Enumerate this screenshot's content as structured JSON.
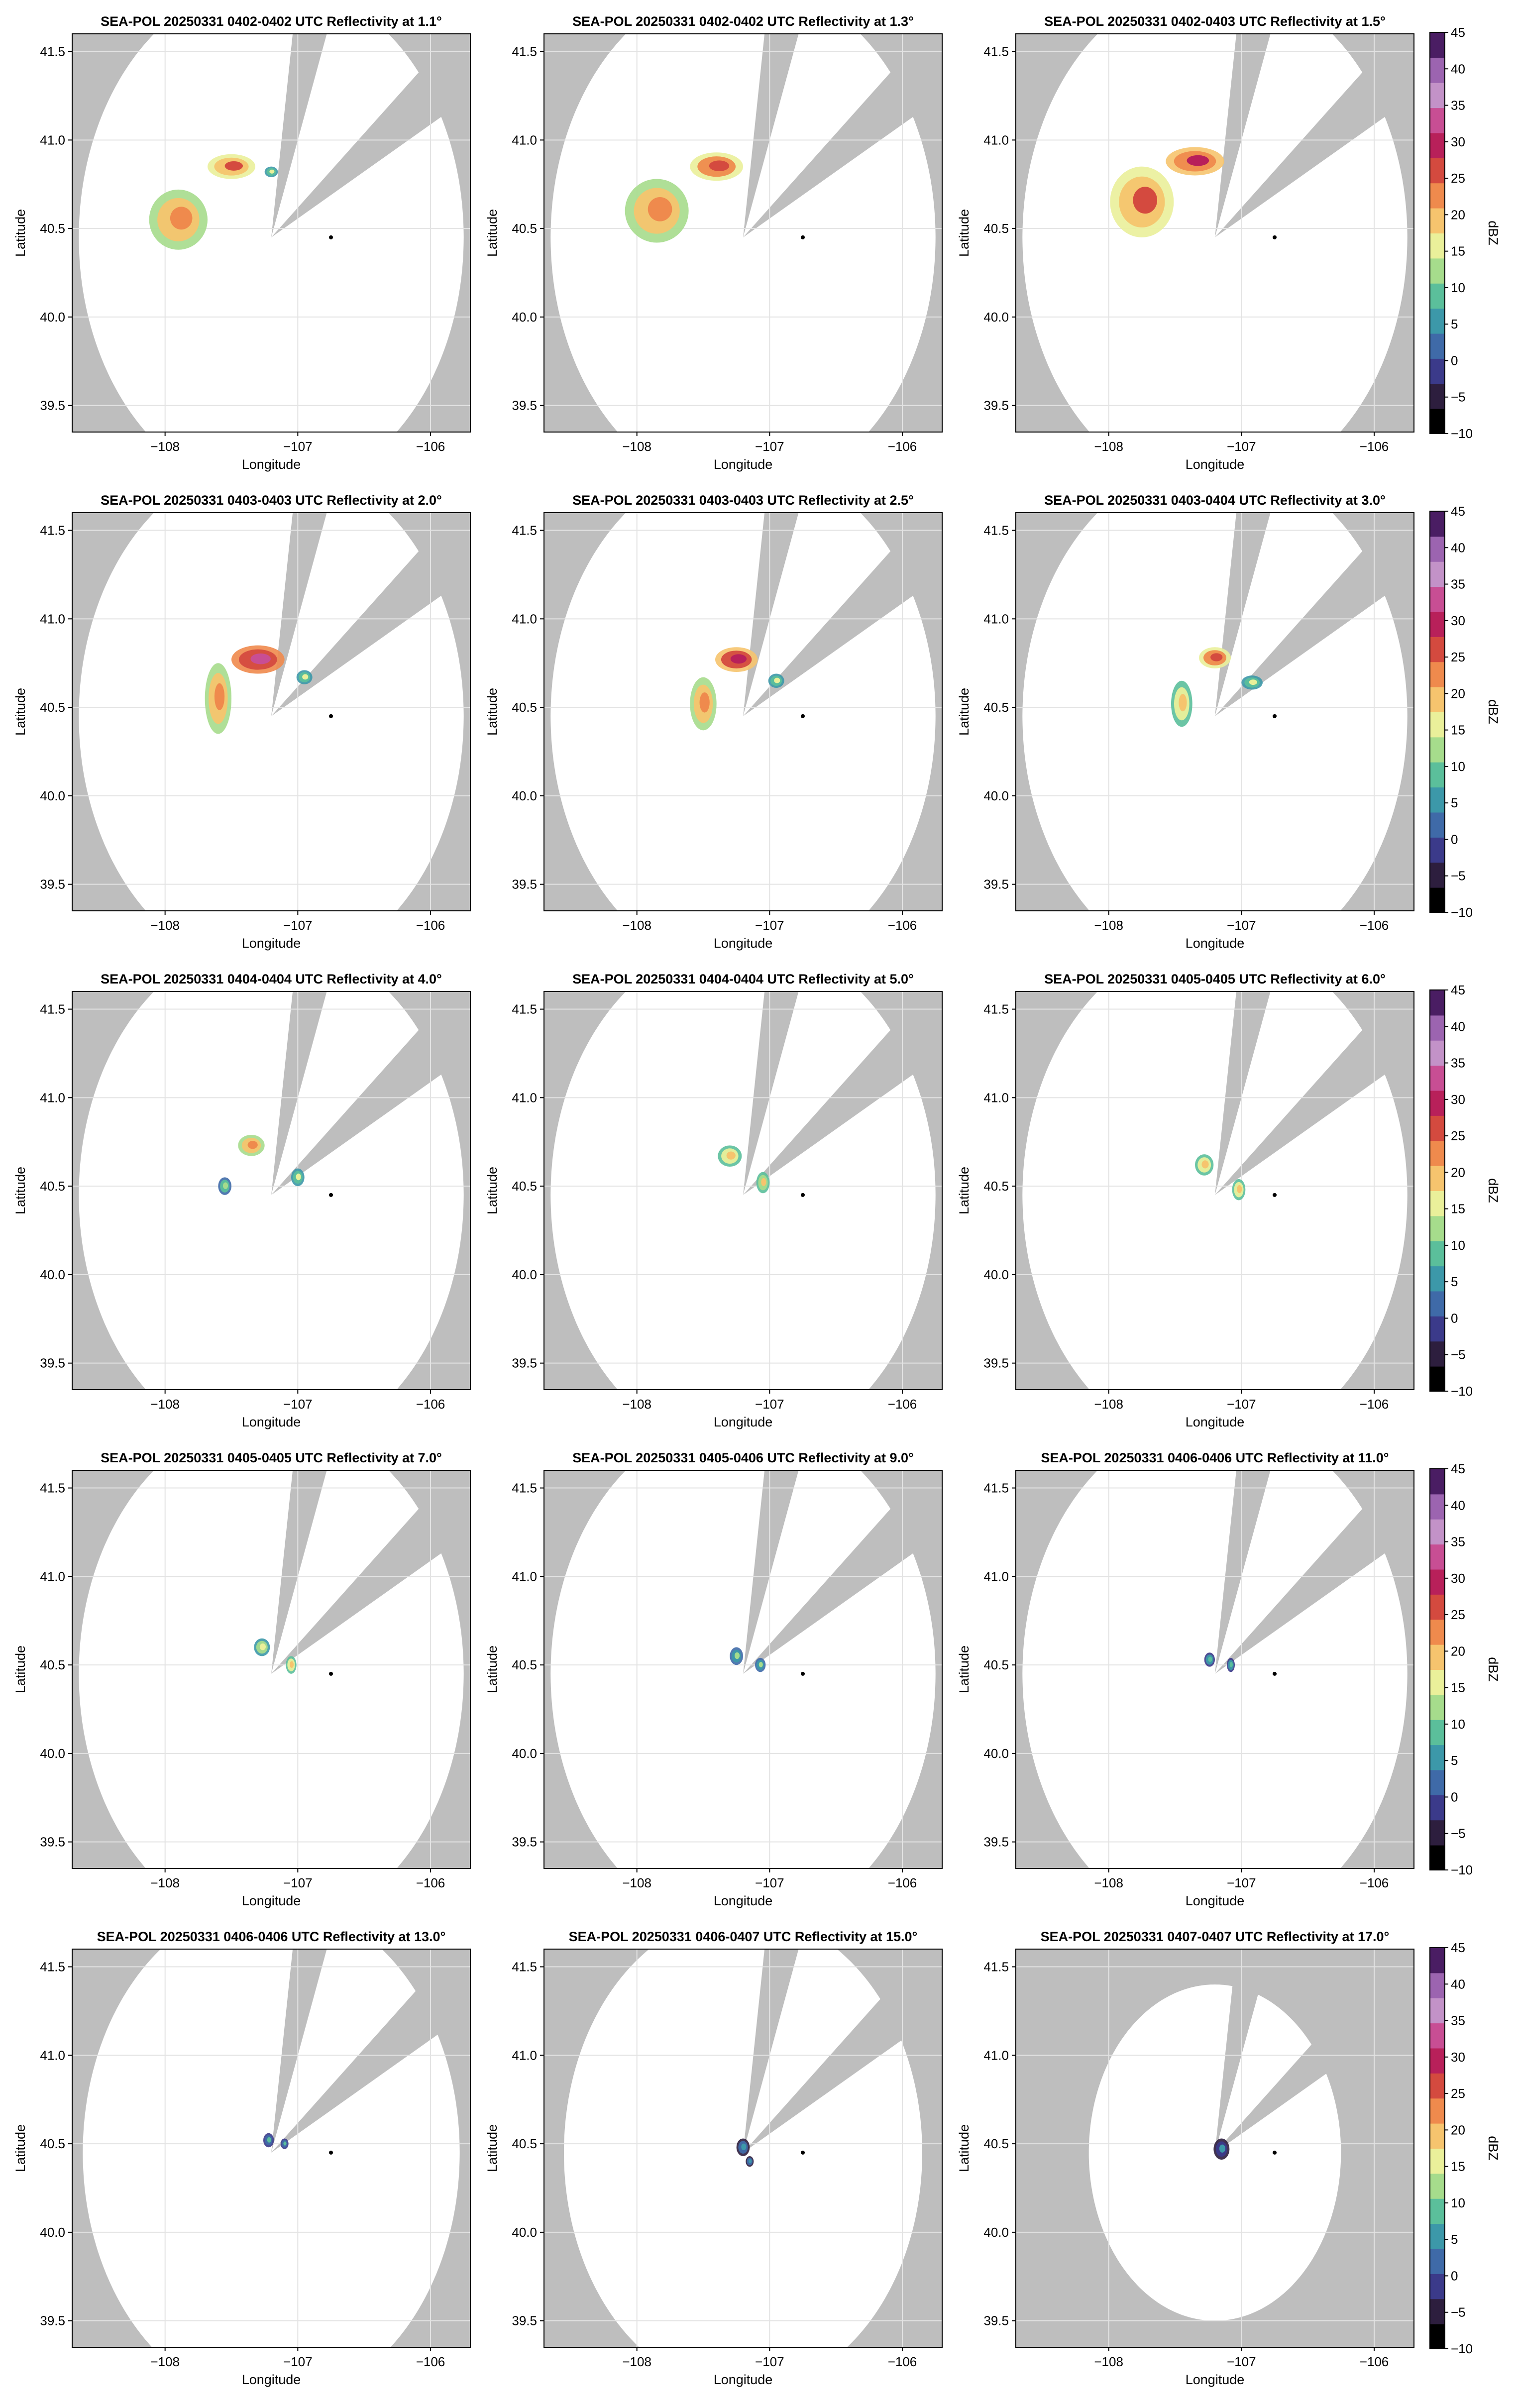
{
  "figure": {
    "panel_titles": [
      "SEA-POL 20250331 0402-0402 UTC Reflectivity at 1.1°",
      "SEA-POL 20250331 0402-0402 UTC Reflectivity at 1.3°",
      "SEA-POL 20250331 0402-0403 UTC Reflectivity at 1.5°",
      "SEA-POL 20250331 0403-0403 UTC Reflectivity at 2.0°",
      "SEA-POL 20250331 0403-0403 UTC Reflectivity at 2.5°",
      "SEA-POL 20250331 0403-0404 UTC Reflectivity at 3.0°",
      "SEA-POL 20250331 0404-0404 UTC Reflectivity at 4.0°",
      "SEA-POL 20250331 0404-0404 UTC Reflectivity at 5.0°",
      "SEA-POL 20250331 0405-0405 UTC Reflectivity at 6.0°",
      "SEA-POL 20250331 0405-0405 UTC Reflectivity at 7.0°",
      "SEA-POL 20250331 0405-0406 UTC Reflectivity at 9.0°",
      "SEA-POL 20250331 0406-0406 UTC Reflectivity at 11.0°",
      "SEA-POL 20250331 0406-0406 UTC Reflectivity at 13.0°",
      "SEA-POL 20250331 0406-0407 UTC Reflectivity at 15.0°",
      "SEA-POL 20250331 0407-0407 UTC Reflectivity at 17.0°"
    ]
  },
  "colors": {
    "background_no_data": "#bebebe",
    "coverage": "#ffffff",
    "grid": "#e3e3e3",
    "radar_marker": "#000000",
    "colormap": [
      "#000000",
      "#2d1e3e",
      "#3b3a8a",
      "#3f6aa8",
      "#3c98a9",
      "#5bbf9b",
      "#a6dc8c",
      "#eaf09a",
      "#f6c46e",
      "#ef8a4d",
      "#d44a3f",
      "#b8205a",
      "#c84e94",
      "#c392c8",
      "#9c64b0",
      "#4a1d63"
    ]
  },
  "chart_data": [
    {
      "type": "heatmap",
      "title": "SEA-POL 20250331 0402-0402 UTC Reflectivity at 1.1°",
      "elevation_deg": 1.1,
      "xlabel": "Longitude",
      "ylabel": "Latitude",
      "xlim": [
        -108.7,
        -105.7
      ],
      "ylim": [
        39.35,
        41.6
      ],
      "xticks": [
        -108,
        -107,
        -106
      ],
      "yticks": [
        39.5,
        40.0,
        40.5,
        41.0,
        41.5
      ],
      "grid": true,
      "radar_site": [
        -106.75,
        40.45
      ],
      "range_deg": 1.45,
      "blanked_sectors_deg": [
        [
          8,
          20
        ],
        [
          50,
          62
        ]
      ],
      "echoes": [
        {
          "lon": -107.9,
          "lat": 40.55,
          "rx": 0.22,
          "ry": 0.17,
          "dbz": 20
        },
        {
          "lon": -107.5,
          "lat": 40.85,
          "rx": 0.18,
          "ry": 0.07,
          "dbz": 23
        },
        {
          "lon": -107.2,
          "lat": 40.82,
          "rx": 0.05,
          "ry": 0.03,
          "dbz": 12
        }
      ]
    },
    {
      "type": "heatmap",
      "title": "SEA-POL 20250331 0402-0402 UTC Reflectivity at 1.3°",
      "elevation_deg": 1.3,
      "xlabel": "Longitude",
      "ylabel": "Latitude",
      "xlim": [
        -108.7,
        -105.7
      ],
      "ylim": [
        39.35,
        41.6
      ],
      "xticks": [
        -108,
        -107,
        -106
      ],
      "yticks": [
        39.5,
        40.0,
        40.5,
        41.0,
        41.5
      ],
      "grid": true,
      "radar_site": [
        -106.75,
        40.45
      ],
      "range_deg": 1.45,
      "blanked_sectors_deg": [
        [
          8,
          20
        ],
        [
          50,
          62
        ]
      ],
      "echoes": [
        {
          "lon": -107.85,
          "lat": 40.6,
          "rx": 0.24,
          "ry": 0.18,
          "dbz": 20
        },
        {
          "lon": -107.4,
          "lat": 40.85,
          "rx": 0.2,
          "ry": 0.08,
          "dbz": 24
        }
      ]
    },
    {
      "type": "heatmap",
      "title": "SEA-POL 20250331 0402-0403 UTC Reflectivity at 1.5°",
      "elevation_deg": 1.5,
      "xlabel": "Longitude",
      "ylabel": "Latitude",
      "xlim": [
        -108.7,
        -105.7
      ],
      "ylim": [
        39.35,
        41.6
      ],
      "xticks": [
        -108,
        -107,
        -106
      ],
      "yticks": [
        39.5,
        40.0,
        40.5,
        41.0,
        41.5
      ],
      "grid": true,
      "radar_site": [
        -106.75,
        40.45
      ],
      "range_deg": 1.45,
      "blanked_sectors_deg": [
        [
          8,
          20
        ],
        [
          50,
          62
        ]
      ],
      "echoes": [
        {
          "lon": -107.75,
          "lat": 40.65,
          "rx": 0.24,
          "ry": 0.2,
          "dbz": 22
        },
        {
          "lon": -107.35,
          "lat": 40.88,
          "rx": 0.22,
          "ry": 0.08,
          "dbz": 26
        }
      ]
    },
    {
      "type": "heatmap",
      "title": "SEA-POL 20250331 0403-0403 UTC Reflectivity at 2.0°",
      "elevation_deg": 2.0,
      "xlabel": "Longitude",
      "ylabel": "Latitude",
      "xlim": [
        -108.7,
        -105.7
      ],
      "ylim": [
        39.35,
        41.6
      ],
      "xticks": [
        -108,
        -107,
        -106
      ],
      "yticks": [
        39.5,
        40.0,
        40.5,
        41.0,
        41.5
      ],
      "grid": true,
      "radar_site": [
        -106.75,
        40.45
      ],
      "range_deg": 1.45,
      "blanked_sectors_deg": [
        [
          8,
          20
        ],
        [
          50,
          62
        ]
      ],
      "echoes": [
        {
          "lon": -107.6,
          "lat": 40.55,
          "rx": 0.1,
          "ry": 0.2,
          "dbz": 20
        },
        {
          "lon": -107.3,
          "lat": 40.77,
          "rx": 0.2,
          "ry": 0.08,
          "dbz": 30
        },
        {
          "lon": -106.95,
          "lat": 40.67,
          "rx": 0.06,
          "ry": 0.04,
          "dbz": 12
        }
      ]
    },
    {
      "type": "heatmap",
      "title": "SEA-POL 20250331 0403-0403 UTC Reflectivity at 2.5°",
      "elevation_deg": 2.5,
      "xlabel": "Longitude",
      "ylabel": "Latitude",
      "xlim": [
        -108.7,
        -105.7
      ],
      "ylim": [
        39.35,
        41.6
      ],
      "xticks": [
        -108,
        -107,
        -106
      ],
      "yticks": [
        39.5,
        40.0,
        40.5,
        41.0,
        41.5
      ],
      "grid": true,
      "radar_site": [
        -106.75,
        40.45
      ],
      "range_deg": 1.45,
      "blanked_sectors_deg": [
        [
          8,
          20
        ],
        [
          50,
          62
        ]
      ],
      "echoes": [
        {
          "lon": -107.5,
          "lat": 40.52,
          "rx": 0.1,
          "ry": 0.15,
          "dbz": 20
        },
        {
          "lon": -107.25,
          "lat": 40.77,
          "rx": 0.16,
          "ry": 0.07,
          "dbz": 27
        },
        {
          "lon": -106.95,
          "lat": 40.65,
          "rx": 0.06,
          "ry": 0.04,
          "dbz": 12
        }
      ]
    },
    {
      "type": "heatmap",
      "title": "SEA-POL 20250331 0403-0404 UTC Reflectivity at 3.0°",
      "elevation_deg": 3.0,
      "xlabel": "Longitude",
      "ylabel": "Latitude",
      "xlim": [
        -108.7,
        -105.7
      ],
      "ylim": [
        39.35,
        41.6
      ],
      "xticks": [
        -108,
        -107,
        -106
      ],
      "yticks": [
        39.5,
        40.0,
        40.5,
        41.0,
        41.5
      ],
      "grid": true,
      "radar_site": [
        -106.75,
        40.45
      ],
      "range_deg": 1.45,
      "blanked_sectors_deg": [
        [
          8,
          20
        ],
        [
          50,
          62
        ]
      ],
      "echoes": [
        {
          "lon": -107.45,
          "lat": 40.52,
          "rx": 0.08,
          "ry": 0.13,
          "dbz": 18
        },
        {
          "lon": -107.2,
          "lat": 40.78,
          "rx": 0.12,
          "ry": 0.06,
          "dbz": 25
        },
        {
          "lon": -106.92,
          "lat": 40.64,
          "rx": 0.08,
          "ry": 0.04,
          "dbz": 12
        }
      ]
    },
    {
      "type": "heatmap",
      "title": "SEA-POL 20250331 0404-0404 UTC Reflectivity at 4.0°",
      "elevation_deg": 4.0,
      "xlabel": "Longitude",
      "ylabel": "Latitude",
      "xlim": [
        -108.7,
        -105.7
      ],
      "ylim": [
        39.35,
        41.6
      ],
      "xticks": [
        -108,
        -107,
        -106
      ],
      "yticks": [
        39.5,
        40.0,
        40.5,
        41.0,
        41.5
      ],
      "grid": true,
      "radar_site": [
        -106.75,
        40.45
      ],
      "range_deg": 1.45,
      "blanked_sectors_deg": [
        [
          8,
          20
        ],
        [
          50,
          62
        ]
      ],
      "echoes": [
        {
          "lon": -107.35,
          "lat": 40.73,
          "rx": 0.1,
          "ry": 0.06,
          "dbz": 20
        },
        {
          "lon": -107.55,
          "lat": 40.5,
          "rx": 0.05,
          "ry": 0.05,
          "dbz": 10
        },
        {
          "lon": -107.0,
          "lat": 40.55,
          "rx": 0.05,
          "ry": 0.05,
          "dbz": 12
        }
      ]
    },
    {
      "type": "heatmap",
      "title": "SEA-POL 20250331 0404-0404 UTC Reflectivity at 5.0°",
      "elevation_deg": 5.0,
      "xlabel": "Longitude",
      "ylabel": "Latitude",
      "xlim": [
        -108.7,
        -105.7
      ],
      "ylim": [
        39.35,
        41.6
      ],
      "xticks": [
        -108,
        -107,
        -106
      ],
      "yticks": [
        39.5,
        40.0,
        40.5,
        41.0,
        41.5
      ],
      "grid": true,
      "radar_site": [
        -106.75,
        40.45
      ],
      "range_deg": 1.45,
      "blanked_sectors_deg": [
        [
          8,
          20
        ],
        [
          50,
          62
        ]
      ],
      "echoes": [
        {
          "lon": -107.3,
          "lat": 40.67,
          "rx": 0.09,
          "ry": 0.06,
          "dbz": 17
        },
        {
          "lon": -107.05,
          "lat": 40.52,
          "rx": 0.05,
          "ry": 0.06,
          "dbz": 15
        }
      ]
    },
    {
      "type": "heatmap",
      "title": "SEA-POL 20250331 0405-0405 UTC Reflectivity at 6.0°",
      "elevation_deg": 6.0,
      "xlabel": "Longitude",
      "ylabel": "Latitude",
      "xlim": [
        -108.7,
        -105.7
      ],
      "ylim": [
        39.35,
        41.6
      ],
      "xticks": [
        -108,
        -107,
        -106
      ],
      "yticks": [
        39.5,
        40.0,
        40.5,
        41.0,
        41.5
      ],
      "grid": true,
      "radar_site": [
        -106.75,
        40.45
      ],
      "range_deg": 1.45,
      "blanked_sectors_deg": [
        [
          8,
          20
        ],
        [
          50,
          62
        ]
      ],
      "echoes": [
        {
          "lon": -107.28,
          "lat": 40.62,
          "rx": 0.07,
          "ry": 0.06,
          "dbz": 16
        },
        {
          "lon": -107.02,
          "lat": 40.48,
          "rx": 0.05,
          "ry": 0.06,
          "dbz": 17
        }
      ]
    },
    {
      "type": "heatmap",
      "title": "SEA-POL 20250331 0405-0405 UTC Reflectivity at 7.0°",
      "elevation_deg": 7.0,
      "xlabel": "Longitude",
      "ylabel": "Latitude",
      "xlim": [
        -108.7,
        -105.7
      ],
      "ylim": [
        39.35,
        41.6
      ],
      "xticks": [
        -108,
        -107,
        -106
      ],
      "yticks": [
        39.5,
        40.0,
        40.5,
        41.0,
        41.5
      ],
      "grid": true,
      "radar_site": [
        -106.75,
        40.45
      ],
      "range_deg": 1.45,
      "blanked_sectors_deg": [
        [
          8,
          20
        ],
        [
          50,
          62
        ]
      ],
      "echoes": [
        {
          "lon": -107.27,
          "lat": 40.6,
          "rx": 0.06,
          "ry": 0.05,
          "dbz": 14
        },
        {
          "lon": -107.05,
          "lat": 40.5,
          "rx": 0.04,
          "ry": 0.05,
          "dbz": 16
        }
      ]
    },
    {
      "type": "heatmap",
      "title": "SEA-POL 20250331 0405-0406 UTC Reflectivity at 9.0°",
      "elevation_deg": 9.0,
      "xlabel": "Longitude",
      "ylabel": "Latitude",
      "xlim": [
        -108.7,
        -105.7
      ],
      "ylim": [
        39.35,
        41.6
      ],
      "xticks": [
        -108,
        -107,
        -106
      ],
      "yticks": [
        39.5,
        40.0,
        40.5,
        41.0,
        41.5
      ],
      "grid": true,
      "radar_site": [
        -106.75,
        40.45
      ],
      "range_deg": 1.45,
      "blanked_sectors_deg": [
        [
          8,
          20
        ],
        [
          50,
          62
        ]
      ],
      "echoes": [
        {
          "lon": -107.25,
          "lat": 40.55,
          "rx": 0.05,
          "ry": 0.05,
          "dbz": 8
        },
        {
          "lon": -107.07,
          "lat": 40.5,
          "rx": 0.04,
          "ry": 0.04,
          "dbz": 8
        }
      ]
    },
    {
      "type": "heatmap",
      "title": "SEA-POL 20250331 0406-0406 UTC Reflectivity at 11.0°",
      "elevation_deg": 11.0,
      "xlabel": "Longitude",
      "ylabel": "Latitude",
      "xlim": [
        -108.7,
        -105.7
      ],
      "ylim": [
        39.35,
        41.6
      ],
      "xticks": [
        -108,
        -107,
        -106
      ],
      "yticks": [
        39.5,
        40.0,
        40.5,
        41.0,
        41.5
      ],
      "grid": true,
      "radar_site": [
        -106.75,
        40.45
      ],
      "range_deg": 1.45,
      "blanked_sectors_deg": [
        [
          8,
          20
        ],
        [
          50,
          62
        ]
      ],
      "echoes": [
        {
          "lon": -107.24,
          "lat": 40.53,
          "rx": 0.04,
          "ry": 0.04,
          "dbz": 6
        },
        {
          "lon": -107.08,
          "lat": 40.5,
          "rx": 0.03,
          "ry": 0.04,
          "dbz": 6
        }
      ]
    },
    {
      "type": "heatmap",
      "title": "SEA-POL 20250331 0406-0406 UTC Reflectivity at 13.0°",
      "elevation_deg": 13.0,
      "xlabel": "Longitude",
      "ylabel": "Latitude",
      "xlim": [
        -108.7,
        -105.7
      ],
      "ylim": [
        39.35,
        41.6
      ],
      "xticks": [
        -108,
        -107,
        -106
      ],
      "yticks": [
        39.5,
        40.0,
        40.5,
        41.0,
        41.5
      ],
      "grid": true,
      "radar_site": [
        -106.75,
        40.45
      ],
      "range_deg": 1.42,
      "blanked_sectors_deg": [
        [
          8,
          20
        ],
        [
          50,
          62
        ]
      ],
      "echoes": [
        {
          "lon": -107.22,
          "lat": 40.52,
          "rx": 0.04,
          "ry": 0.04,
          "dbz": 4
        },
        {
          "lon": -107.1,
          "lat": 40.5,
          "rx": 0.03,
          "ry": 0.03,
          "dbz": 4
        }
      ]
    },
    {
      "type": "heatmap",
      "title": "SEA-POL 20250331 0406-0407 UTC Reflectivity at 15.0°",
      "elevation_deg": 15.0,
      "xlabel": "Longitude",
      "ylabel": "Latitude",
      "xlim": [
        -108.7,
        -105.7
      ],
      "ylim": [
        39.35,
        41.6
      ],
      "xticks": [
        -108,
        -107,
        -106
      ],
      "yticks": [
        39.5,
        40.0,
        40.5,
        41.0,
        41.5
      ],
      "grid": true,
      "radar_site": [
        -106.75,
        40.45
      ],
      "range_deg": 1.35,
      "blanked_sectors_deg": [
        [
          8,
          20
        ],
        [
          50,
          62
        ]
      ],
      "echoes": [
        {
          "lon": -107.2,
          "lat": 40.48,
          "rx": 0.05,
          "ry": 0.05,
          "dbz": 2
        },
        {
          "lon": -107.15,
          "lat": 40.4,
          "rx": 0.03,
          "ry": 0.03,
          "dbz": 2
        }
      ]
    },
    {
      "type": "heatmap",
      "title": "SEA-POL 20250331 0407-0407 UTC Reflectivity at 17.0°",
      "elevation_deg": 17.0,
      "xlabel": "Longitude",
      "ylabel": "Latitude",
      "xlim": [
        -108.7,
        -105.7
      ],
      "ylim": [
        39.35,
        41.6
      ],
      "xticks": [
        -108,
        -107,
        -106
      ],
      "yticks": [
        39.5,
        40.0,
        40.5,
        41.0,
        41.5
      ],
      "grid": true,
      "radar_site": [
        -106.75,
        40.45
      ],
      "range_deg": 0.95,
      "blanked_sectors_deg": [
        [
          8,
          20
        ],
        [
          50,
          62
        ]
      ],
      "echoes": [
        {
          "lon": -107.15,
          "lat": 40.47,
          "rx": 0.06,
          "ry": 0.06,
          "dbz": 0
        }
      ]
    }
  ],
  "colorbar": {
    "label": "dBZ",
    "vmin": -10,
    "vmax": 45,
    "ticks": [
      -10,
      -5,
      0,
      5,
      10,
      15,
      20,
      25,
      30,
      35,
      40,
      45
    ]
  }
}
